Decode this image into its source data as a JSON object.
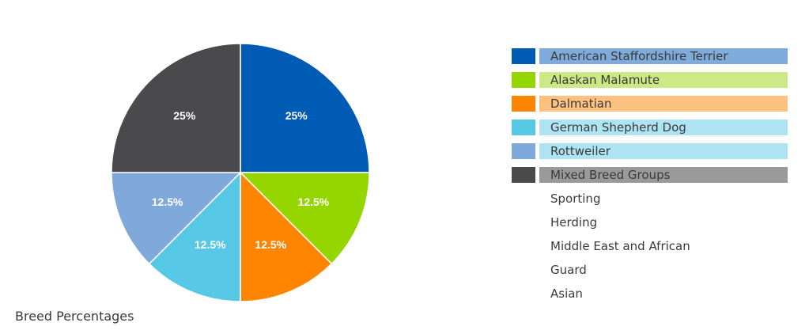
{
  "caption": "Breed Percentages",
  "legend_extra": [
    "Sporting",
    "Herding",
    "Middle East and African",
    "Guard",
    "Asian"
  ],
  "chart_data": {
    "type": "pie",
    "title": "Breed Percentages",
    "legend_placement": "right",
    "slices": [
      {
        "name": "American Staffordshire Terrier",
        "value": 25,
        "label": "25%",
        "color": "#005bb5",
        "legend_bar": "#7fabdb"
      },
      {
        "name": "Alaskan Malamute",
        "value": 12.5,
        "label": "12.5%",
        "color": "#95d600",
        "legend_bar": "#cde986"
      },
      {
        "name": "Dalmatian",
        "value": 12.5,
        "label": "12.5%",
        "color": "#ff8500",
        "legend_bar": "#ffc17f"
      },
      {
        "name": "German Shepherd Dog",
        "value": 12.5,
        "label": "12.5%",
        "color": "#57c8e6",
        "legend_bar": "#ade3f3"
      },
      {
        "name": "Rottweiler",
        "value": 12.5,
        "label": "12.5%",
        "color": "#7fa9db",
        "legend_bar": "#ade3f3"
      },
      {
        "name": "Mixed Breed Groups",
        "value": 25,
        "label": "25%",
        "color": "#4a4a4c",
        "legend_bar": "#9a9a9a"
      }
    ]
  }
}
